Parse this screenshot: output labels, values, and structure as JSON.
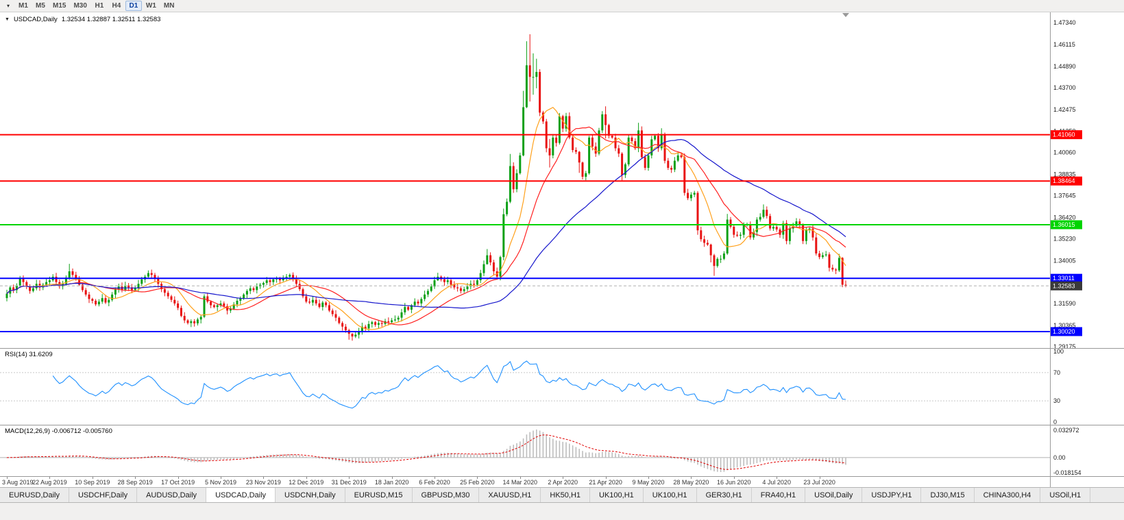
{
  "toolbar": {
    "dropdown_icon": "▾",
    "periods": [
      "M1",
      "M5",
      "M15",
      "M30",
      "H1",
      "H4",
      "D1",
      "W1",
      "MN"
    ],
    "active_period": "D1"
  },
  "chart_data": {
    "type": "candlestick",
    "symbol": "USDCAD,Daily",
    "quote": "1.32534 1.32887 1.32511 1.32583",
    "y_axis": {
      "max": 1.4792,
      "min": 1.291,
      "labels": [
        "1.47340",
        "1.46115",
        "1.44890",
        "1.43700",
        "1.42475",
        "1.41250",
        "1.40060",
        "1.38835",
        "1.37645",
        "1.36420",
        "1.35230",
        "1.34005",
        "1.31590",
        "1.30365",
        "1.29175"
      ]
    },
    "hlines": [
      {
        "price": 1.4106,
        "label": "1.41060",
        "color": "#FF0000"
      },
      {
        "price": 1.38464,
        "label": "1.38464",
        "color": "#FF0000"
      },
      {
        "price": 1.36015,
        "label": "1.36015",
        "color": "#00D400"
      },
      {
        "price": 1.33011,
        "label": "1.33011",
        "color": "#0000FF"
      },
      {
        "price": 1.3002,
        "label": "1.30020",
        "color": "#0000FF"
      }
    ],
    "current_price": {
      "price": 1.32583,
      "label": "1.32583",
      "badge_color": "#3a3a3a",
      "line_color": "#b0b0b0"
    },
    "colors": {
      "up": "#0CA016",
      "down": "#E81212",
      "background": "#FFFFFF"
    },
    "moving_averages": [
      {
        "period": 10,
        "color": "#FFA01A"
      },
      {
        "period": 21,
        "color": "#FF2020"
      },
      {
        "period": 50,
        "color": "#1515CC"
      }
    ],
    "x_labels": [
      [
        0,
        "3 Aug 2019"
      ],
      [
        13,
        "22 Aug 2019"
      ],
      [
        26,
        "10 Sep 2019"
      ],
      [
        39,
        "28 Sep 2019"
      ],
      [
        52,
        "17 Oct 2019"
      ],
      [
        65,
        "5 Nov 2019"
      ],
      [
        78,
        "23 Nov 2019"
      ],
      [
        91,
        "12 Dec 2019"
      ],
      [
        104,
        "31 Dec 2019"
      ],
      [
        117,
        "18 Jan 2020"
      ],
      [
        130,
        "6 Feb 2020"
      ],
      [
        143,
        "25 Feb 2020"
      ],
      [
        156,
        "14 Mar 2020"
      ],
      [
        169,
        "2 Apr 2020"
      ],
      [
        182,
        "21 Apr 2020"
      ],
      [
        195,
        "9 May 2020"
      ],
      [
        208,
        "28 May 2020"
      ],
      [
        221,
        "16 Jun 2020"
      ],
      [
        234,
        "4 Jul 2020"
      ],
      [
        247,
        "23 Jul 2020"
      ]
    ],
    "candles": {
      "first_open": 1.319,
      "closes": [
        1.3215,
        1.325,
        1.3235,
        1.326,
        1.33,
        1.328,
        1.3255,
        1.323,
        1.3245,
        1.327,
        1.325,
        1.3265,
        1.328,
        1.329,
        1.331,
        1.328,
        1.3255,
        1.327,
        1.3305,
        1.334,
        1.332,
        1.33,
        1.3265,
        1.3235,
        1.321,
        1.3185,
        1.3175,
        1.3155,
        1.317,
        1.319,
        1.3165,
        1.318,
        1.321,
        1.324,
        1.3255,
        1.3235,
        1.326,
        1.325,
        1.3235,
        1.3245,
        1.327,
        1.3295,
        1.331,
        1.333,
        1.332,
        1.33,
        1.327,
        1.324,
        1.322,
        1.32,
        1.318,
        1.316,
        1.3135,
        1.309,
        1.3065,
        1.305,
        1.306,
        1.3048,
        1.307,
        1.3085,
        1.32,
        1.317,
        1.315,
        1.314,
        1.315,
        1.316,
        1.3145,
        1.312,
        1.313,
        1.3155,
        1.3175,
        1.319,
        1.321,
        1.323,
        1.3245,
        1.3235,
        1.3255,
        1.3265,
        1.3275,
        1.329,
        1.328,
        1.3295,
        1.33,
        1.329,
        1.3305,
        1.331,
        1.332,
        1.3295,
        1.327,
        1.324,
        1.32,
        1.317,
        1.3165,
        1.318,
        1.316,
        1.314,
        1.3165,
        1.315,
        1.312,
        1.31,
        1.308,
        1.305,
        1.303,
        1.301,
        1.299,
        1.2975,
        1.2985,
        1.3005,
        1.303,
        1.302,
        1.3045,
        1.3055,
        1.304,
        1.305,
        1.3045,
        1.306,
        1.3055,
        1.3065,
        1.307,
        1.308,
        1.311,
        1.314,
        1.3125,
        1.315,
        1.317,
        1.316,
        1.3185,
        1.321,
        1.323,
        1.3255,
        1.329,
        1.331,
        1.3295,
        1.328,
        1.329,
        1.3265,
        1.325,
        1.3245,
        1.323,
        1.324,
        1.3255,
        1.327,
        1.3265,
        1.329,
        1.333,
        1.338,
        1.343,
        1.339,
        1.334,
        1.331,
        1.342,
        1.366,
        1.373,
        1.393,
        1.38,
        1.389,
        1.399,
        1.426,
        1.4495,
        1.443,
        1.443,
        1.4458,
        1.423,
        1.418,
        1.403,
        1.399,
        1.409,
        1.406,
        1.421,
        1.414,
        1.421,
        1.409,
        1.402,
        1.401,
        1.395,
        1.387,
        1.389,
        1.409,
        1.404,
        1.4,
        1.413,
        1.422,
        1.416,
        1.41,
        1.409,
        1.403,
        1.4,
        1.388,
        1.394,
        1.409,
        1.407,
        1.403,
        1.413,
        1.398,
        1.392,
        1.399,
        1.408,
        1.41,
        1.403,
        1.411,
        1.396,
        1.392,
        1.391,
        1.396,
        1.399,
        1.398,
        1.378,
        1.375,
        1.377,
        1.378,
        1.357,
        1.352,
        1.35,
        1.349,
        1.343,
        1.337,
        1.341,
        1.341,
        1.344,
        1.363,
        1.359,
        1.3545,
        1.354,
        1.3545,
        1.36,
        1.3605,
        1.353,
        1.356,
        1.363,
        1.3645,
        1.3685,
        1.365,
        1.358,
        1.359,
        1.3575,
        1.3545,
        1.361,
        1.351,
        1.358,
        1.3595,
        1.362,
        1.36,
        1.351,
        1.3575,
        1.358,
        1.353,
        1.344,
        1.342,
        1.343,
        1.3435,
        1.336,
        1.335,
        1.3345,
        1.3415,
        1.3265,
        1.32583
      ],
      "hl_overrides": {
        "19": [
          1.3382,
          1.3292
        ],
        "43": [
          1.3345,
          1.3298
        ],
        "55": [
          1.3072,
          1.3042
        ],
        "60": [
          1.3212,
          1.3078
        ],
        "86": [
          1.3328,
          1.3292
        ],
        "104": [
          1.3018,
          1.2957
        ],
        "105": [
          1.2994,
          1.2951
        ],
        "131": [
          1.3332,
          1.3286
        ],
        "146": [
          1.3465,
          1.3378
        ],
        "151": [
          1.3692,
          1.3402
        ],
        "153": [
          1.3998,
          1.3722
        ],
        "157": [
          1.4352,
          1.3985
        ],
        "158": [
          1.463,
          1.4255
        ],
        "159": [
          1.4669,
          1.4292
        ],
        "160": [
          1.4562,
          1.433
        ],
        "161": [
          1.4532,
          1.4366
        ],
        "165": [
          1.4082,
          1.3922
        ],
        "174": [
          1.4015,
          1.3892
        ],
        "175": [
          1.3955,
          1.3855
        ],
        "177": [
          1.41,
          1.3882
        ],
        "182": [
          1.4265,
          1.4085
        ],
        "187": [
          1.4008,
          1.385
        ],
        "192": [
          1.4173,
          1.4008
        ],
        "199": [
          1.4142,
          1.4018
        ],
        "200": [
          1.4118,
          1.3945
        ],
        "210": [
          1.379,
          1.3545
        ],
        "214": [
          1.3495,
          1.339
        ],
        "215": [
          1.3438,
          1.3315
        ],
        "219": [
          1.3662,
          1.3432
        ],
        "230": [
          1.3715,
          1.3636
        ],
        "254": [
          1.342,
          1.3251
        ],
        "255": [
          1.32887,
          1.32511
        ]
      }
    }
  },
  "rsi": {
    "label": "RSI(14) 31.6209",
    "period": 14,
    "line_color": "#1E90FF",
    "levels": [
      100,
      70,
      30,
      0
    ],
    "level_labels": [
      "100",
      "70",
      "30",
      "0"
    ],
    "dashed_levels": [
      70,
      30
    ]
  },
  "macd": {
    "label": "MACD(12,26,9) -0.006712 -0.005760",
    "fast": 12,
    "slow": 26,
    "signal": 9,
    "scale_max": 0.032972,
    "scale_min": -0.018154,
    "axis_labels": [
      "0.032972",
      "0.00",
      "-0.018154"
    ],
    "hist_color": "#BDBDBD",
    "signal_color": "#E00000"
  },
  "tabs": [
    "EURUSD,Daily",
    "USDCHF,Daily",
    "AUDUSD,Daily",
    "USDCAD,Daily",
    "USDCNH,Daily",
    "EURUSD,M15",
    "GBPUSD,M30",
    "XAUUSD,H1",
    "HK50,H1",
    "UK100,H1",
    "UK100,H1",
    "GER30,H1",
    "FRA40,H1",
    "USOil,Daily",
    "USDJPY,H1",
    "DJ30,M15",
    "CHINA300,H4",
    "USOil,H1"
  ],
  "active_tab": "USDCAD,Daily",
  "active_tab_index": 3
}
